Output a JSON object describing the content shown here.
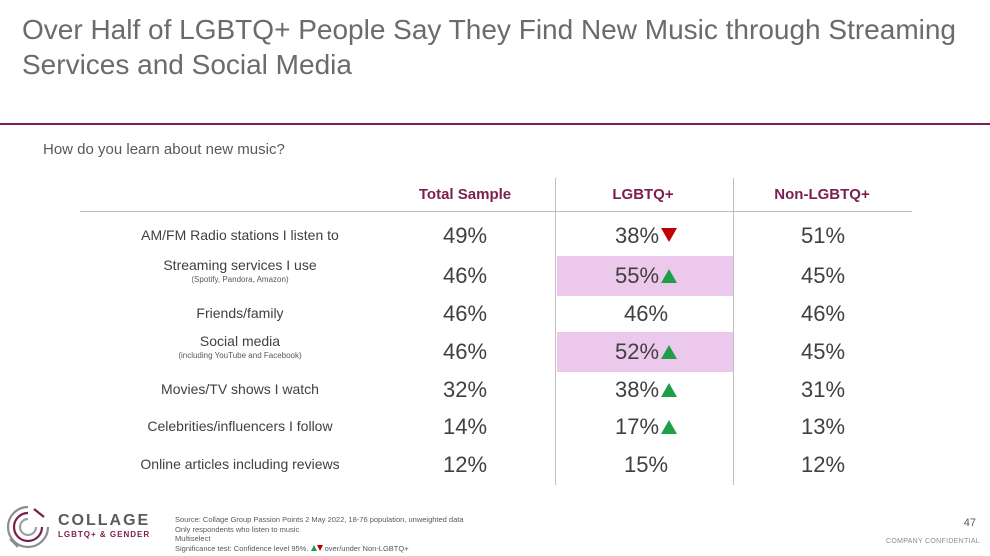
{
  "title": "Over Half of LGBTQ+ People Say They Find New Music through Streaming Services and Social Media",
  "question": "How do you learn about new music?",
  "columns": [
    "Total Sample",
    "LGBTQ+",
    "Non-LGBTQ+"
  ],
  "rows": [
    {
      "label": "AM/FM Radio stations I listen to",
      "sub": "",
      "total": "49%",
      "lgbtq": "38%",
      "lgbtq_sig": "down",
      "non": "51%",
      "highlight": false
    },
    {
      "label": "Streaming services I use",
      "sub": "(Spotify, Pandora, Amazon)",
      "total": "46%",
      "lgbtq": "55%",
      "lgbtq_sig": "up",
      "non": "45%",
      "highlight": true
    },
    {
      "label": "Friends/family",
      "sub": "",
      "total": "46%",
      "lgbtq": "46%",
      "lgbtq_sig": "",
      "non": "46%",
      "highlight": false
    },
    {
      "label": "Social media",
      "sub": "(including YouTube and Facebook)",
      "total": "46%",
      "lgbtq": "52%",
      "lgbtq_sig": "up",
      "non": "45%",
      "highlight": true
    },
    {
      "label": "Movies/TV shows I watch",
      "sub": "",
      "total": "32%",
      "lgbtq": "38%",
      "lgbtq_sig": "up",
      "non": "31%",
      "highlight": false
    },
    {
      "label": "Celebrities/influencers I follow",
      "sub": "",
      "total": "14%",
      "lgbtq": "17%",
      "lgbtq_sig": "up",
      "non": "13%",
      "highlight": false
    },
    {
      "label": "Online articles including reviews",
      "sub": "",
      "total": "12%",
      "lgbtq": "15%",
      "lgbtq_sig": "",
      "non": "12%",
      "highlight": false
    }
  ],
  "logo": {
    "name": "COLLAGE",
    "sub": "LGBTQ+ & GENDER"
  },
  "footer": {
    "source": "Source: Collage Group Passion Points 2 May 2022, 18-76 population, unweighted data",
    "note1": "Only respondents who listen to music",
    "note2": "Multiselect",
    "sig_prefix": "Significance test: Confidence level 95%.",
    "sig_suffix": "over/under Non-LGBTQ+"
  },
  "page_number": "47",
  "confidential": "COMPANY CONFIDENTIAL",
  "colors": {
    "accent": "#7a1f4f",
    "highlight": "#ecc9ec",
    "up": "#1f9e4a",
    "down": "#c00000"
  }
}
